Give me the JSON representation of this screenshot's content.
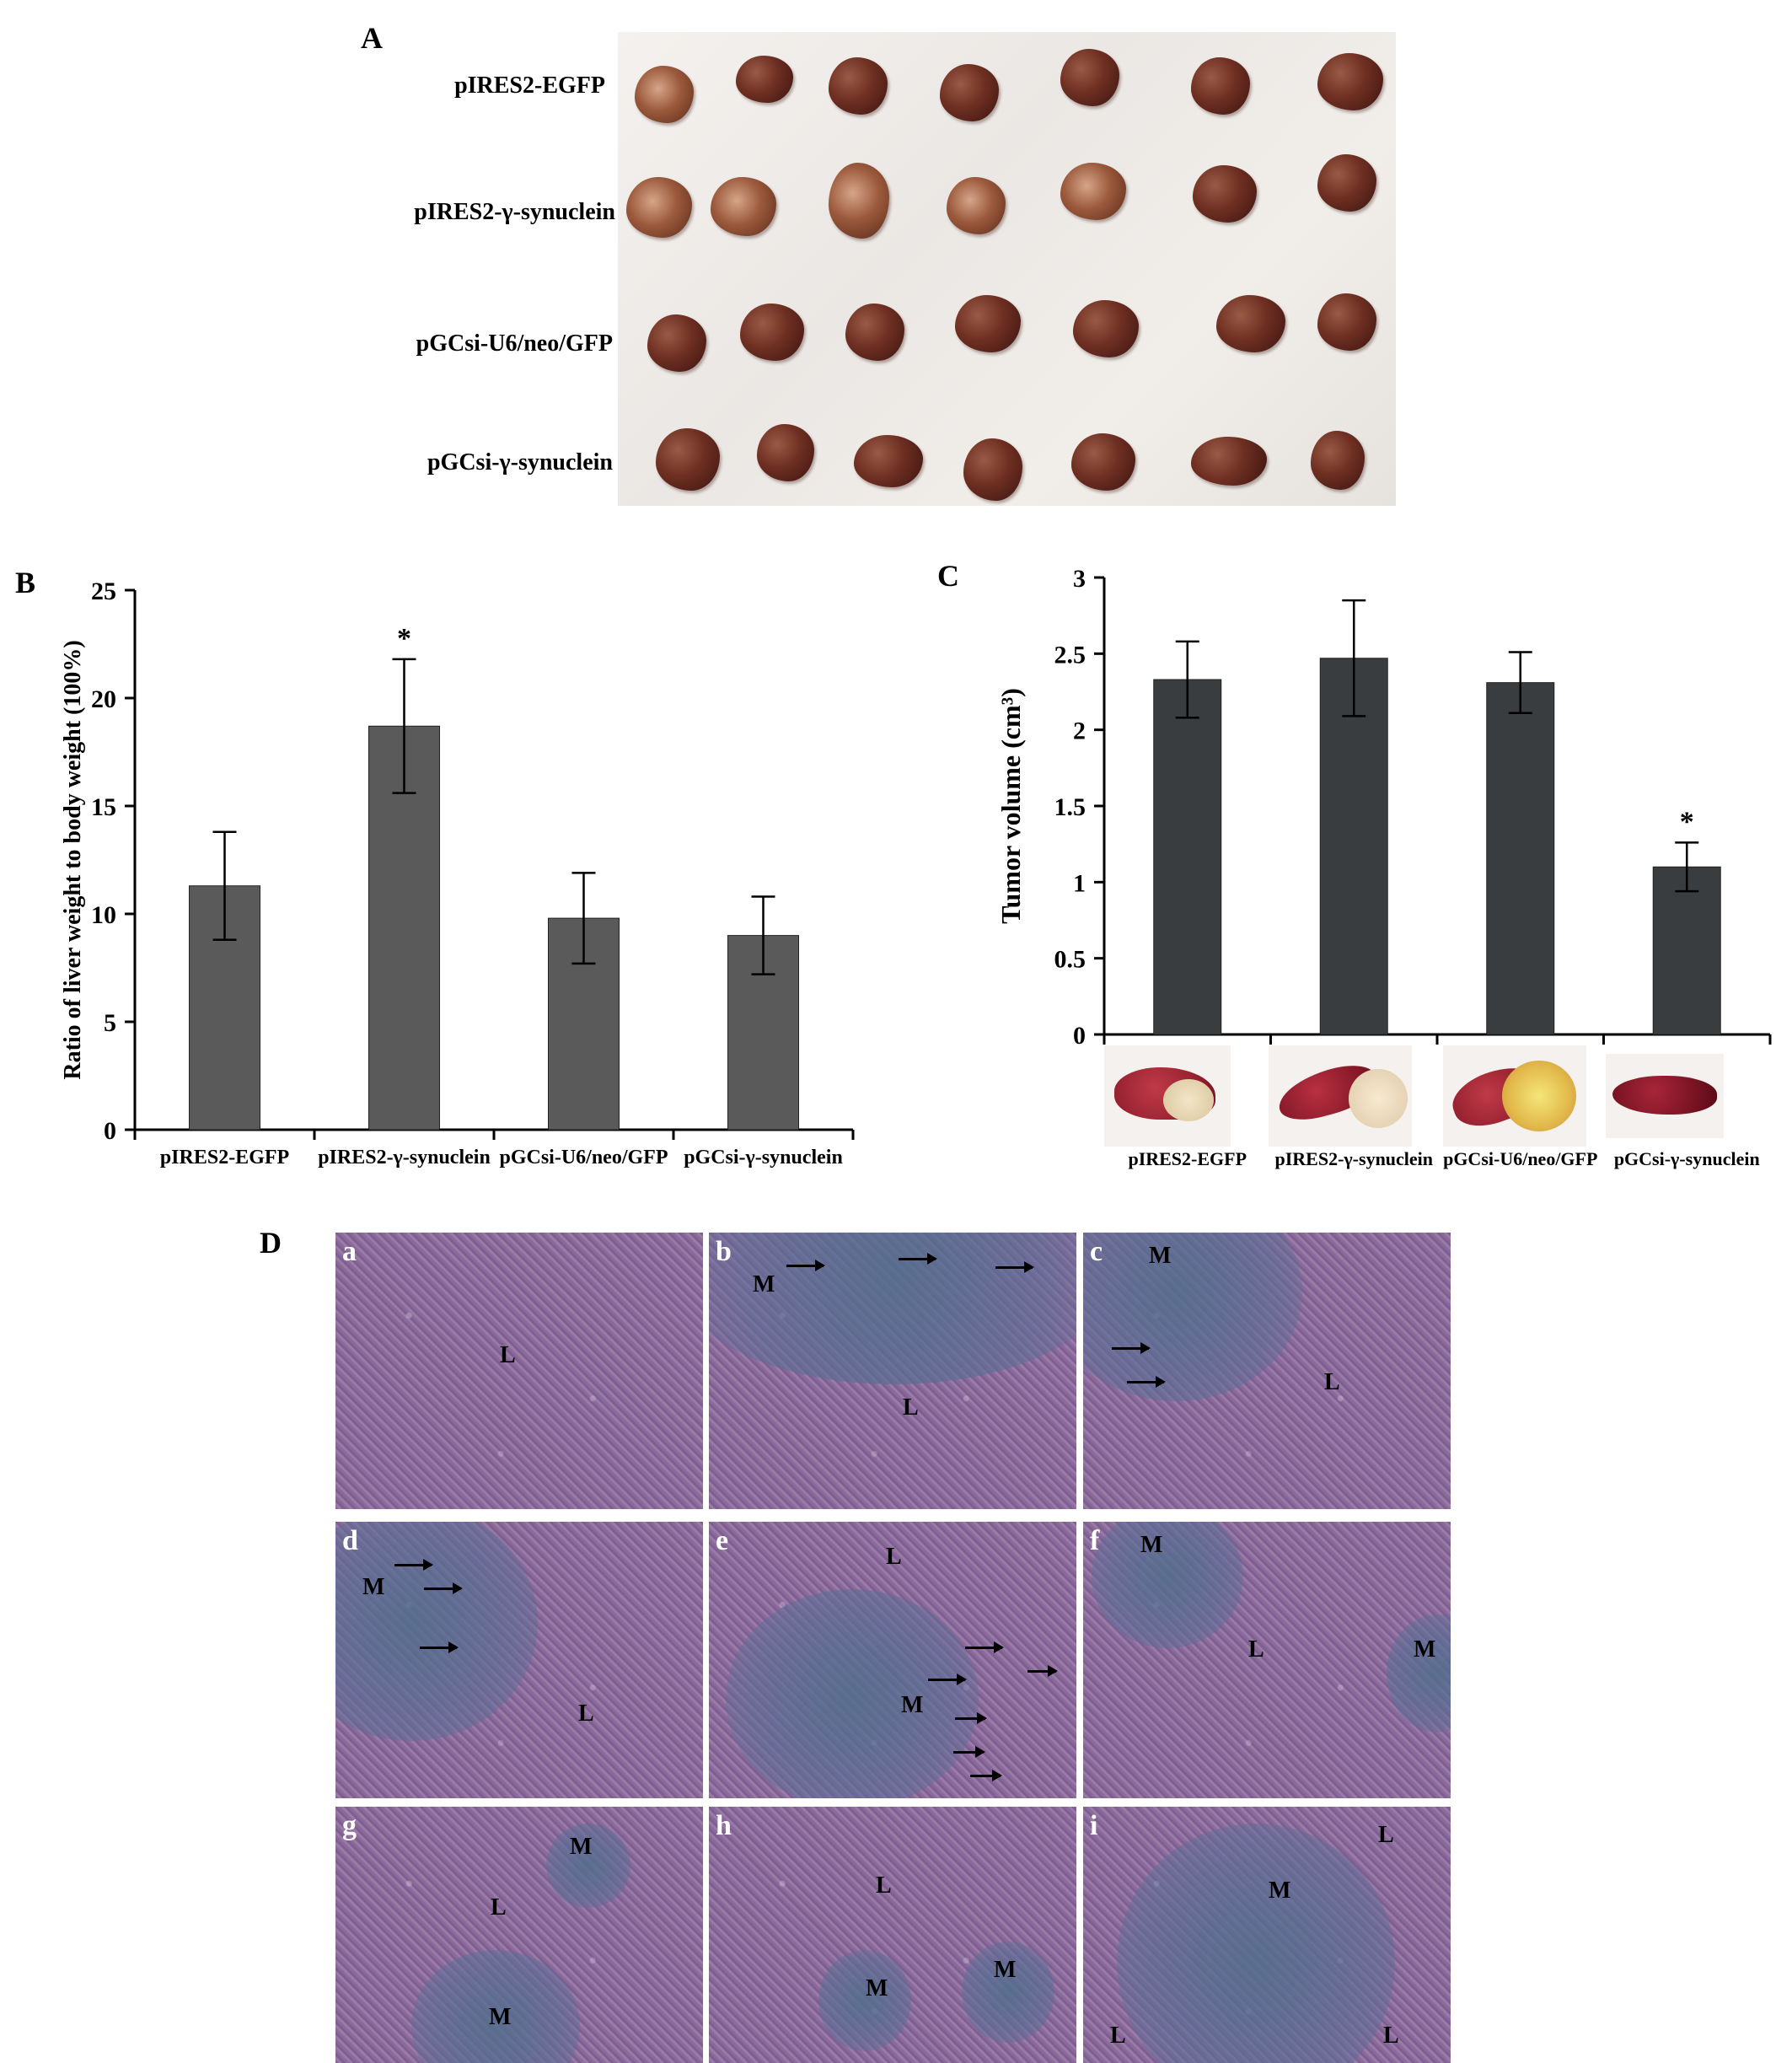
{
  "panelA": {
    "letter": "A",
    "rows": [
      "pIRES2-EGFP",
      "pIRES2-γ-synuclein",
      "pGCsi-U6/neo/GFP",
      "pGCsi-γ-synuclein"
    ]
  },
  "panelB": {
    "letter": "B"
  },
  "panelC": {
    "letter": "C"
  },
  "panelD": {
    "letter": "D",
    "tiles": [
      {
        "id": "a",
        "regions": [
          "L"
        ]
      },
      {
        "id": "b",
        "regions": [
          "M",
          "L"
        ]
      },
      {
        "id": "c",
        "regions": [
          "M",
          "L"
        ]
      },
      {
        "id": "d",
        "regions": [
          "M",
          "L"
        ]
      },
      {
        "id": "e",
        "regions": [
          "L",
          "M"
        ]
      },
      {
        "id": "f",
        "regions": [
          "M",
          "L",
          "M"
        ]
      },
      {
        "id": "g",
        "regions": [
          "M",
          "L",
          "M"
        ]
      },
      {
        "id": "h",
        "regions": [
          "L",
          "M",
          "M"
        ]
      },
      {
        "id": "i",
        "regions": [
          "L",
          "M",
          "L",
          "L"
        ]
      }
    ]
  },
  "chart_data": [
    {
      "type": "bar",
      "title": "",
      "xlabel": "",
      "ylabel": "Ratio of liver weight to body weight (100%)",
      "categories": [
        "pIRES2-EGFP",
        "pIRES2-γ-synuclein",
        "pGCsi-U6/neo/GFP",
        "pGCsi-γ-synuclein"
      ],
      "values": [
        11.3,
        18.7,
        9.8,
        9.0
      ],
      "errors": [
        2.5,
        3.1,
        2.1,
        1.8
      ],
      "significance": [
        "",
        "*",
        "",
        ""
      ],
      "ylim": [
        0,
        25
      ],
      "yticks": [
        0,
        5,
        10,
        15,
        20,
        25
      ],
      "bar_color": "#5a5a5a"
    },
    {
      "type": "bar",
      "title": "",
      "xlabel": "",
      "ylabel": "Tumor volume (cm³)",
      "categories": [
        "pIRES2-EGFP",
        "pIRES2-γ-synuclein",
        "pGCsi-U6/neo/GFP",
        "pGCsi-γ-synuclein"
      ],
      "values": [
        2.33,
        2.47,
        2.31,
        1.1
      ],
      "errors": [
        0.25,
        0.38,
        0.2,
        0.16
      ],
      "significance": [
        "",
        "",
        "",
        "*"
      ],
      "ylim": [
        0,
        3
      ],
      "yticks": [
        "0",
        "0.5",
        "1",
        "1.5",
        "2",
        "2.5",
        "3"
      ],
      "bar_color": "#3a3d40"
    }
  ]
}
